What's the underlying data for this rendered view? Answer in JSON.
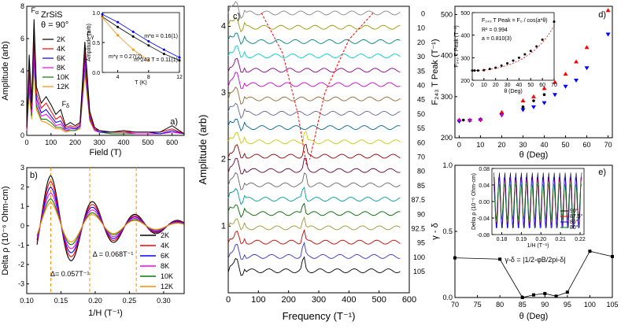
{
  "colors": {
    "2K": "#000000",
    "4K": "#ff0000",
    "6K": "#0000ff",
    "8K": "#ff00ff",
    "10K": "#008000",
    "12K": "#ff8c00"
  },
  "chart_data": [
    {
      "panel": "a)",
      "type": "line",
      "title": "ZrSiS",
      "subtitle": "θ = 90°",
      "xlabel": "Field (T)",
      "ylabel": "Amplitude (arb)",
      "xlim": [
        0,
        650
      ],
      "ylim": [
        0,
        8
      ],
      "xticks": [
        "0",
        "100",
        "200",
        "300",
        "400",
        "500",
        "600"
      ],
      "yticks": [
        "0",
        "2",
        "4",
        "6",
        "8"
      ],
      "series": [
        {
          "name": "2K",
          "x": [
            0,
            10,
            20,
            30,
            40,
            60,
            80,
            100,
            120,
            140,
            160,
            180,
            200,
            220,
            240,
            260,
            280,
            300,
            350,
            400,
            450,
            500,
            550,
            600,
            650
          ],
          "values": [
            0.5,
            5,
            2,
            7.2,
            3,
            2,
            2.4,
            1.9,
            1.3,
            1.6,
            0.6,
            0.8,
            0.6,
            0.8,
            5.8,
            1.5,
            0.5,
            0.3,
            0.2,
            0.3,
            0.2,
            0.2,
            0.2,
            0.6,
            0.1
          ]
        },
        {
          "name": "4K",
          "x": [
            0,
            10,
            20,
            30,
            40,
            60,
            80,
            100,
            120,
            140,
            160,
            180,
            200,
            220,
            240,
            260,
            280,
            300,
            350,
            400,
            450,
            500,
            550,
            600,
            650
          ],
          "values": [
            0.4,
            4.5,
            1.8,
            6.6,
            2.6,
            1.7,
            2.0,
            1.5,
            1.0,
            1.2,
            0.5,
            0.6,
            0.5,
            0.7,
            5.4,
            1.3,
            0.4,
            0.3,
            0.2,
            0.2,
            0.2,
            0.2,
            0.2,
            0.4,
            0.1
          ]
        },
        {
          "name": "6K",
          "x": [
            0,
            10,
            20,
            30,
            40,
            60,
            80,
            100,
            120,
            140,
            160,
            180,
            200,
            220,
            240,
            260,
            280,
            300,
            350,
            400,
            450,
            500,
            550,
            600,
            650
          ],
          "values": [
            0.4,
            4,
            1.6,
            6.0,
            2.3,
            1.4,
            1.6,
            1.2,
            0.8,
            0.9,
            0.4,
            0.5,
            0.4,
            0.6,
            5.0,
            1.2,
            0.4,
            0.2,
            0.2,
            0.2,
            0.2,
            0.2,
            0.1,
            0.3,
            0.1
          ]
        },
        {
          "name": "8K",
          "x": [
            0,
            10,
            20,
            30,
            40,
            60,
            80,
            100,
            120,
            140,
            160,
            180,
            200,
            220,
            240,
            260,
            280,
            300,
            350,
            400,
            450,
            500,
            550,
            600,
            650
          ],
          "values": [
            0.3,
            3.5,
            1.4,
            5.4,
            2.0,
            1.2,
            1.3,
            1.0,
            0.6,
            0.7,
            0.3,
            0.4,
            0.4,
            0.5,
            4.6,
            1.1,
            0.3,
            0.2,
            0.2,
            0.2,
            0.1,
            0.1,
            0.1,
            0.2,
            0.1
          ]
        },
        {
          "name": "10K",
          "x": [
            0,
            10,
            20,
            30,
            40,
            60,
            80,
            100,
            120,
            140,
            160,
            180,
            200,
            220,
            240,
            260,
            280,
            300,
            350,
            400,
            450,
            500,
            550,
            600,
            650
          ],
          "values": [
            0.3,
            3,
            1.2,
            4.8,
            1.8,
            1.0,
            1.0,
            0.8,
            0.5,
            0.5,
            0.3,
            0.3,
            0.3,
            0.5,
            4.2,
            1.0,
            0.3,
            0.2,
            0.1,
            0.1,
            0.1,
            0.1,
            0.1,
            0.2,
            0.1
          ]
        },
        {
          "name": "12K",
          "x": [
            0,
            10,
            20,
            30,
            40,
            60,
            80,
            100,
            120,
            140,
            160,
            180,
            200,
            220,
            240,
            260,
            280,
            300,
            350,
            400,
            450,
            500,
            550,
            600,
            650
          ],
          "values": [
            0.3,
            2.6,
            1.0,
            4.2,
            1.6,
            0.9,
            0.8,
            0.6,
            0.4,
            0.4,
            0.2,
            0.3,
            0.3,
            0.4,
            3.8,
            0.9,
            0.3,
            0.2,
            0.1,
            0.1,
            0.1,
            0.1,
            0.1,
            0.2,
            0.1
          ]
        }
      ],
      "annotations": [
        {
          "text": "F",
          "sub": "α",
          "x": 18,
          "y": 7.6
        },
        {
          "text": "F",
          "sub": "γ",
          "x": 248,
          "y": 6.1
        },
        {
          "text": "F",
          "sub": "δ",
          "x": 145,
          "y": 1.8
        }
      ],
      "inset": {
        "type": "scatter",
        "xlabel": "T (K)",
        "ylabel": "Amplitude (arb)",
        "xlim": [
          2,
          12
        ],
        "ylim": [
          0,
          1
        ],
        "xticks": [
          "4",
          "8",
          "12"
        ],
        "yticks": [
          "0.0",
          "0.5",
          "1.0"
        ],
        "series": [
          {
            "name": "m*_α",
            "label": "m*α = 0.16(1)",
            "color": "#0000ff",
            "x": [
              2,
              4,
              6,
              8,
              10,
              12
            ],
            "values": [
              0.97,
              0.84,
              0.68,
              0.52,
              0.38,
              0.25
            ]
          },
          {
            "name": "m*_243",
            "label": "m*243 T = 0.11(1)",
            "color": "#000000",
            "x": [
              2,
              4,
              6,
              8,
              10,
              12
            ],
            "values": [
              0.93,
              0.76,
              0.6,
              0.45,
              0.31,
              0.2
            ]
          },
          {
            "name": "m*_γ",
            "label": "m*γ = 0.27(2)",
            "color": "#ff8c00",
            "x": [
              2,
              4,
              6,
              8
            ],
            "values": [
              0.92,
              0.62,
              0.38,
              0.2
            ]
          }
        ]
      }
    },
    {
      "panel": "b)",
      "type": "line",
      "xlabel": "1/H (T⁻¹)",
      "ylabel": "Delta ρ (10⁻⁶ Ohm-cm)",
      "xlim": [
        0.1,
        0.33
      ],
      "ylim": [
        -3.5,
        3
      ],
      "xticks": [
        "0.10",
        "0.15",
        "0.20",
        "0.25",
        "0.30"
      ],
      "yticks": [
        "-3",
        "-2",
        "-1",
        "0",
        "1",
        "2",
        "3"
      ],
      "amplitudes": {
        "2K": 2.6,
        "4K": 2.3,
        "6K": 2.0,
        "8K": 1.7,
        "10K": 1.4,
        "12K": 1.2
      },
      "dashed_x": [
        0.135,
        0.192,
        0.26
      ],
      "annotations": [
        {
          "text": "Δ= 0.057T⁻¹",
          "x": 0.163,
          "y": -2.6
        },
        {
          "text": "Δ = 0.068T⁻¹",
          "x": 0.226,
          "y": -1.6
        }
      ],
      "legend": [
        "2K",
        "4K",
        "6K",
        "8K",
        "10K",
        "12K"
      ]
    },
    {
      "panel": "c)",
      "type": "line",
      "xlabel": "Frequency (T⁻¹)",
      "ylabel": "Amplitude (arb)",
      "xlim": [
        0,
        600
      ],
      "ylim": [
        0,
        4.3
      ],
      "xticks": [
        "0",
        "100",
        "200",
        "300",
        "400",
        "500",
        "600"
      ],
      "yticks": [
        "1",
        "2",
        "3",
        "4"
      ],
      "angles": [
        "0",
        "10",
        "20",
        "30",
        "35",
        "40",
        "45",
        "50",
        "55",
        "60",
        "70",
        "80",
        "85",
        "87.5",
        "90",
        "92.5",
        "95",
        "100",
        "105"
      ],
      "line_colors": [
        "#888888",
        "#999900",
        "#008080",
        "#00cccc",
        "#880088",
        "#cc00cc",
        "#996633",
        "#666699",
        "#006699",
        "#cccc00",
        "#8b0000",
        "#660033",
        "#666666",
        "#009999",
        "#006600",
        "#999933",
        "#cc0000",
        "#3333cc",
        "#000000"
      ],
      "peak_positions": [
        0,
        0,
        0,
        0,
        0,
        0,
        0,
        0,
        0,
        255,
        255,
        255,
        255,
        250,
        250,
        250,
        250,
        250,
        250
      ],
      "fits": [
        {
          "name": "branch-left",
          "x": [
            110,
            180,
            230,
            260
          ],
          "values": [
            4.2,
            3.6,
            2.7,
            1.9
          ]
        },
        {
          "name": "branch-right",
          "x": [
            480,
            400,
            320,
            270
          ],
          "values": [
            4.2,
            3.8,
            3.0,
            2.0
          ]
        }
      ]
    },
    {
      "panel": "d)",
      "type": "scatter",
      "xlabel": "θ (Deg)",
      "ylabel": "F₂₄₃ T Peak (T⁻¹)",
      "xlim": [
        -2,
        72
      ],
      "ylim": [
        200,
        520
      ],
      "xticks": [
        "0",
        "10",
        "20",
        "30",
        "40",
        "50",
        "60",
        "70"
      ],
      "yticks": [
        "200",
        "300",
        "400",
        "500"
      ],
      "series": [
        {
          "name": "black",
          "color": "#000000",
          "x": [
            0,
            2,
            5,
            10,
            20,
            30,
            35,
            40
          ],
          "values": [
            243,
            243,
            243,
            245,
            258,
            275,
            290,
            305
          ]
        },
        {
          "name": "red",
          "color": "#ff0000",
          "x": [
            0,
            5,
            10,
            20,
            30,
            35,
            40,
            45,
            50,
            55,
            60,
            70
          ],
          "values": [
            243,
            243,
            245,
            262,
            290,
            300,
            320,
            335,
            355,
            385,
            420,
            510
          ]
        },
        {
          "name": "blue",
          "color": "#0000ff",
          "x": [
            0,
            5,
            10,
            20,
            30,
            35,
            40,
            45,
            50,
            55,
            60,
            70
          ],
          "values": [
            240,
            242,
            243,
            255,
            268,
            275,
            285,
            305,
            325,
            340,
            370,
            452
          ]
        },
        {
          "name": "magenta",
          "color": "#cc00cc",
          "x": [
            0,
            5,
            10,
            20
          ],
          "values": [
            243,
            243,
            243,
            255
          ]
        }
      ],
      "inset": {
        "type": "scatter",
        "xlabel": "θ (Deg)",
        "ylabel": "F₂₄₃ T Peak (T⁻¹)",
        "xlim": [
          0,
          70
        ],
        "ylim": [
          200,
          500
        ],
        "xticks": [
          "0",
          "10",
          "20",
          "30",
          "40",
          "50",
          "60",
          "70"
        ],
        "yticks": [
          "200",
          "300",
          "400",
          "500"
        ],
        "equation": "F₂₄₃ T Peak = F₀ / cos(a*θ)",
        "r2": "R² = 0.994",
        "a": "a = 0.810(3)",
        "x": [
          0,
          2,
          5,
          10,
          15,
          20,
          25,
          30,
          35,
          40,
          45,
          50,
          55,
          60,
          70
        ],
        "values": [
          243,
          243,
          243,
          245,
          250,
          256,
          265,
          275,
          287,
          300,
          315,
          330,
          350,
          380,
          460
        ]
      }
    },
    {
      "panel": "e)",
      "type": "scatter",
      "xlabel": "θ (Deg)",
      "ylabel": "γ - δ",
      "xlim": [
        70,
        105
      ],
      "ylim": [
        0,
        1.0
      ],
      "xticks": [
        "70",
        "75",
        "80",
        "85",
        "90",
        "95",
        "100",
        "105"
      ],
      "yticks": [
        "0.0",
        "0.5",
        "1.0"
      ],
      "x": [
        70,
        80,
        85,
        87.5,
        90,
        92.5,
        95,
        100,
        105
      ],
      "values": [
        0.3,
        0.29,
        0.0,
        0.02,
        0.03,
        0.01,
        0.04,
        0.35,
        0.31
      ],
      "annotation": "γ-δ = |1/2-φB/2pi-δ|",
      "inset": {
        "type": "line",
        "xlabel": "1/H (T⁻¹)",
        "ylabel": "Delta ρ (10⁻⁶ Ohm-cm)",
        "xlim": [
          0.175,
          0.222
        ],
        "ylim": [
          -0.08,
          0.08
        ],
        "xticks": [
          "0.18",
          "0.19",
          "0.20",
          "0.21",
          "0.22"
        ],
        "yticks": [
          "-0.08",
          "-0.04",
          "0.00",
          "0.04",
          "0.08"
        ],
        "legend": [
          "90°",
          "87.5°",
          "85°",
          "80°"
        ],
        "legend_colors": [
          "#000000",
          "#ff0000",
          "#0000ff",
          "#008000"
        ]
      }
    }
  ]
}
